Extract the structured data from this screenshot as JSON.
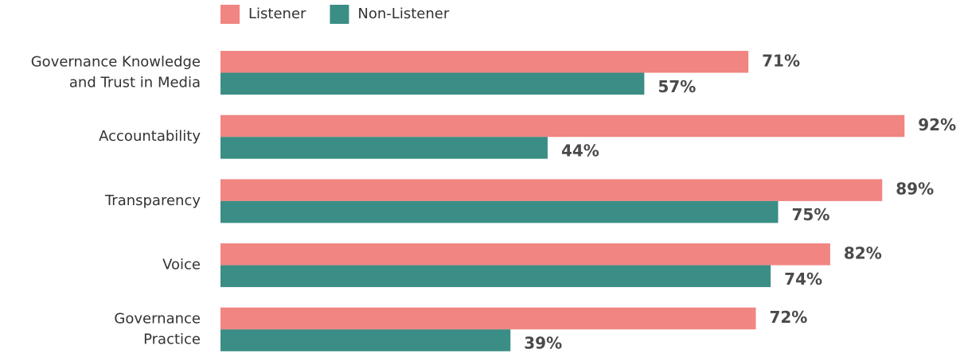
{
  "chart_data": {
    "type": "bar",
    "orientation": "horizontal",
    "categories": [
      [
        "Governance Knowledge",
        "and Trust in Media"
      ],
      [
        "Accountability"
      ],
      [
        "Transparency"
      ],
      [
        "Voice"
      ],
      [
        "Governance",
        "Practice"
      ]
    ],
    "series": [
      {
        "name": "Listener",
        "color": "#f08581",
        "values": [
          71,
          92,
          89,
          82,
          72
        ],
        "value_labels": [
          "71%",
          "92%",
          "89%",
          "82%",
          "72%"
        ]
      },
      {
        "name": "Non-Listener",
        "color": "#3a8e86",
        "values": [
          57,
          44,
          75,
          74,
          39
        ],
        "value_labels": [
          "57%",
          "44%",
          "75%",
          "74%",
          "39%"
        ]
      }
    ],
    "xlim": [
      0,
      100
    ],
    "legend": "top"
  }
}
